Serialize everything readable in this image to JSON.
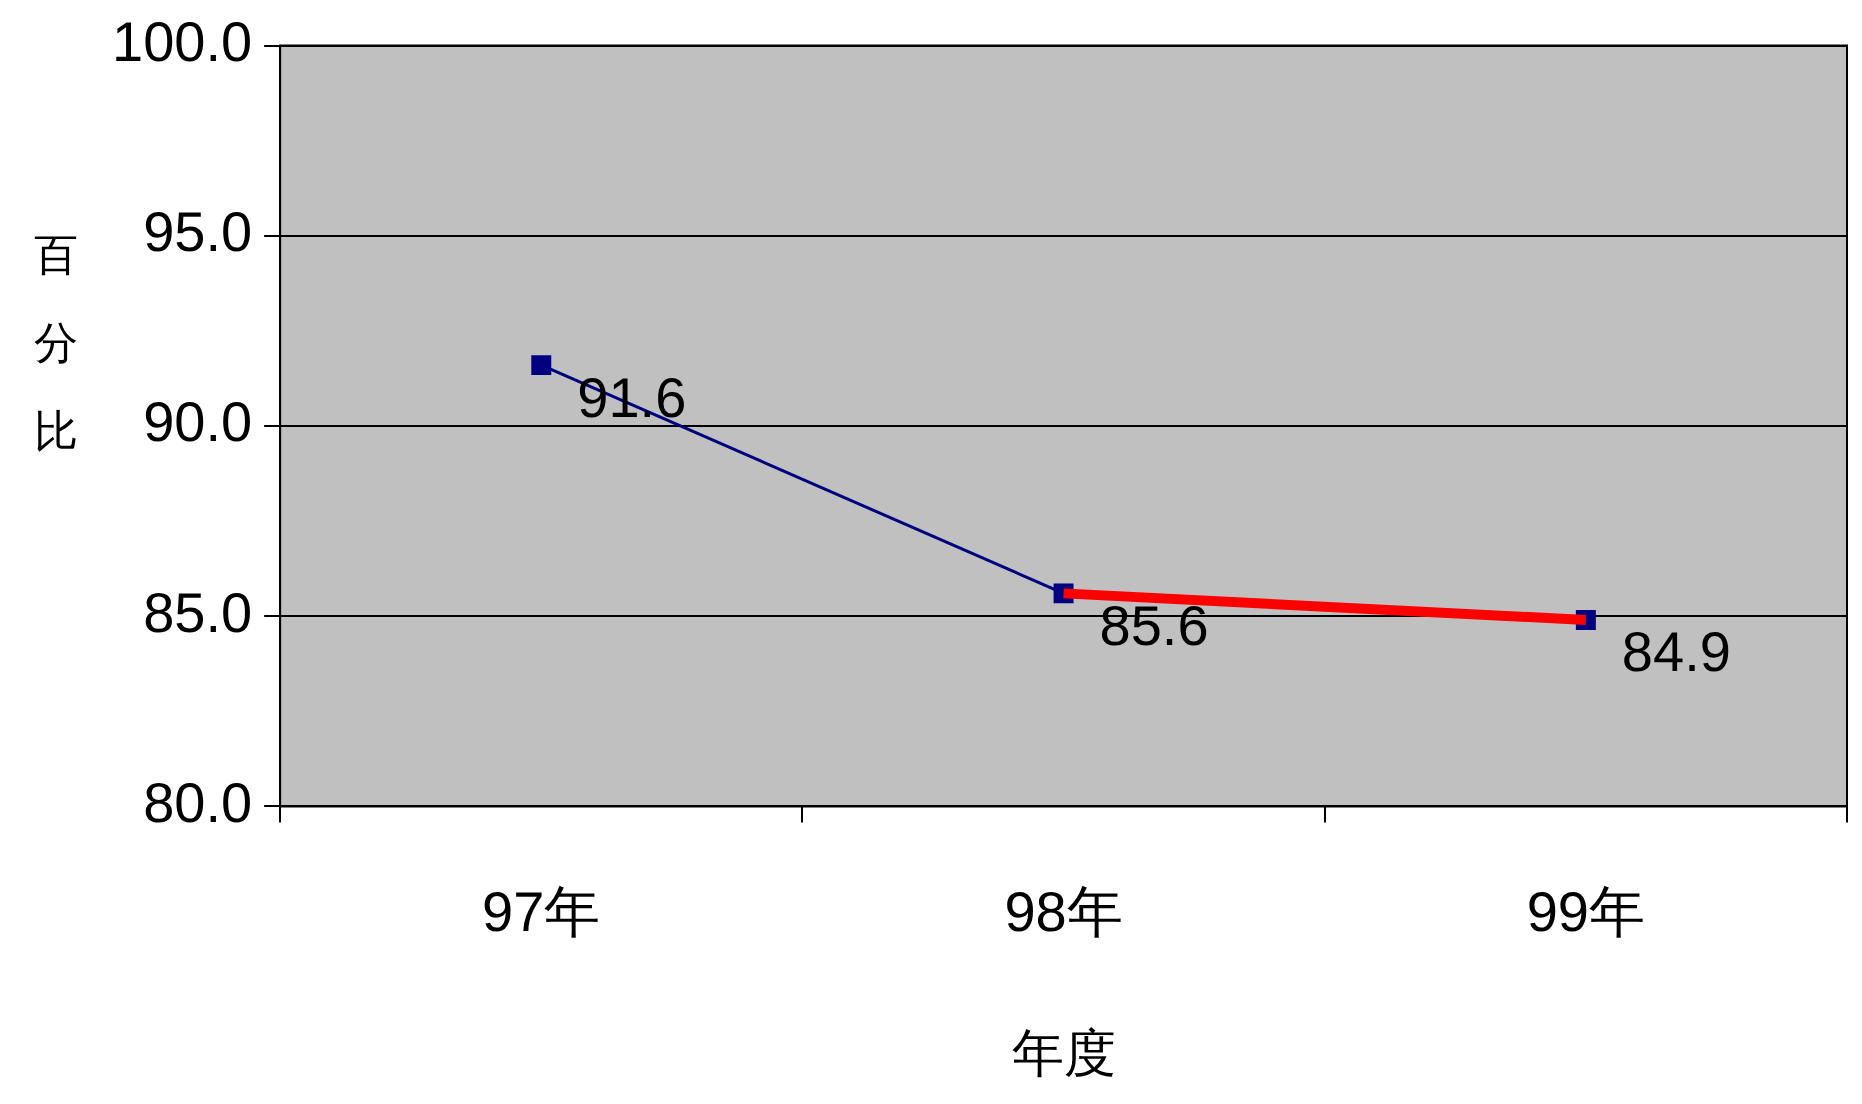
{
  "chart_data": {
    "type": "line",
    "xlabel": "年度",
    "ylabel": "百分比",
    "categories": [
      "97年",
      "98年",
      "99年"
    ],
    "series": [
      {
        "color": "#ff0000",
        "values": [
          null,
          85.6,
          84.9
        ],
        "marker": "none"
      },
      {
        "color": "#000080",
        "values": [
          91.6,
          85.6,
          null
        ],
        "marker": "square",
        "value_labels": [
          "91.6",
          "85.6",
          null
        ]
      },
      {
        "color": "#000080",
        "values": [
          null,
          null,
          84.9
        ],
        "marker": "square",
        "value_labels": [
          null,
          null,
          "84.9"
        ]
      }
    ],
    "ylim": [
      80,
      100
    ],
    "yticks": [
      {
        "value": 80,
        "label": "80.0"
      },
      {
        "value": 85,
        "label": "85.0"
      },
      {
        "value": 90,
        "label": "90.0"
      },
      {
        "value": 95,
        "label": "95.0"
      },
      {
        "value": 100,
        "label": "100.0"
      }
    ],
    "grid": "y",
    "legend": false
  }
}
